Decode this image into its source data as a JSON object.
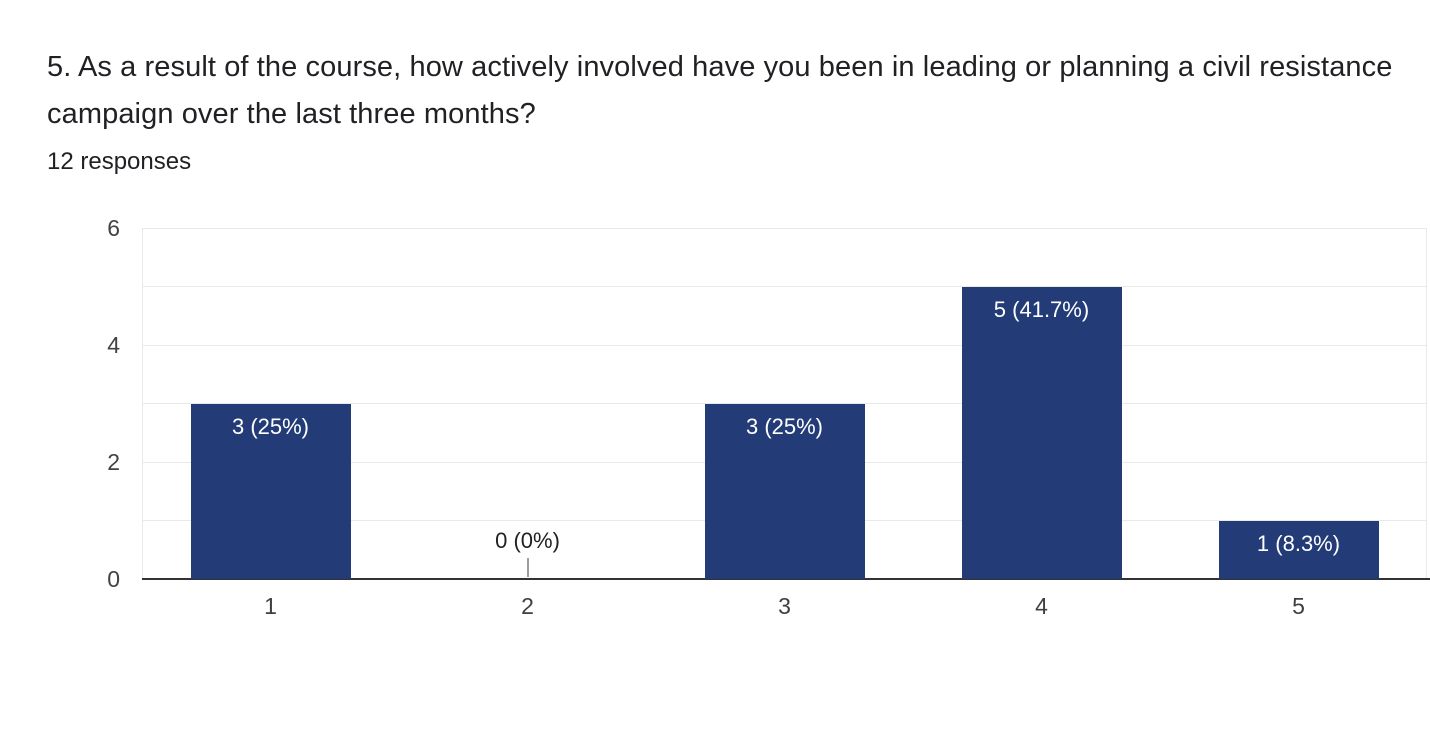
{
  "header": {
    "title": "5. As a result of the course, how actively involved have you been in leading or planning a civil resistance campaign over the last three months?",
    "responses_count": "12 responses"
  },
  "chart_data": {
    "type": "bar",
    "title": "",
    "xlabel": "",
    "ylabel": "",
    "categories": [
      "1",
      "2",
      "3",
      "4",
      "5"
    ],
    "values": [
      3,
      0,
      3,
      5,
      1
    ],
    "bar_labels": [
      "3 (25%)",
      "0 (0%)",
      "3 (25%)",
      "5 (41.7%)",
      "1 (8.3%)"
    ],
    "ylim": [
      0,
      6
    ],
    "y_tick_labels": [
      0,
      2,
      4,
      6
    ],
    "gridline_values": [
      1,
      2,
      3,
      4,
      5,
      6
    ],
    "grid": "on",
    "legend": "none",
    "colors": {
      "bar": "#233b77",
      "bar_label_text": "#ffffff",
      "zero_label_text": "#202124",
      "axis_text": "#424242",
      "x_axis_text": "#3c4043",
      "gridline": "#e9e9e9",
      "baseline": "#333333",
      "connector": "#9e9e9e",
      "background": "#ffffff",
      "title_text": "#202124"
    }
  }
}
